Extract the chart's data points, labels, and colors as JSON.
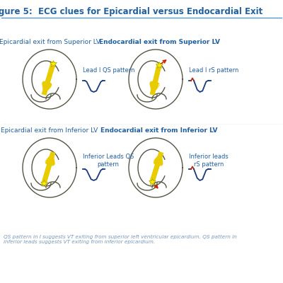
{
  "title": "gure 5:  ECG clues for Epicardial versus Endocardial Exit",
  "title_color": "#2060a0",
  "title_fontsize": 8.5,
  "bg_color": "#ffffff",
  "panel_titles_left": [
    "Epicardial exit from Superior LV",
    "Epicardial exit from Inferior LV"
  ],
  "panel_titles_right": [
    "Endocardial exit from Superior LV",
    "Endocardial exit from Inferior LV"
  ],
  "annot_left": [
    "Lead I QS pattern",
    "Inferior Leads QS\npattern"
  ],
  "annot_right": [
    "Lead I rS pattern",
    "Inferior leads\nrS pattern"
  ],
  "annotation_color": "#2060a0",
  "heart_color": "#555544",
  "arrow_color": "#e8cc00",
  "red_arrow_color": "#cc2200",
  "footer_text": "QS pattern in I suggests VT exiting from superior left ventricular epicardium. QS pattern in\ninferior leads suggests VT exiting from inferior epicardium.",
  "footer_color": "#7799bb",
  "footer_fontsize": 5.2,
  "divider_color": "#5599cc"
}
